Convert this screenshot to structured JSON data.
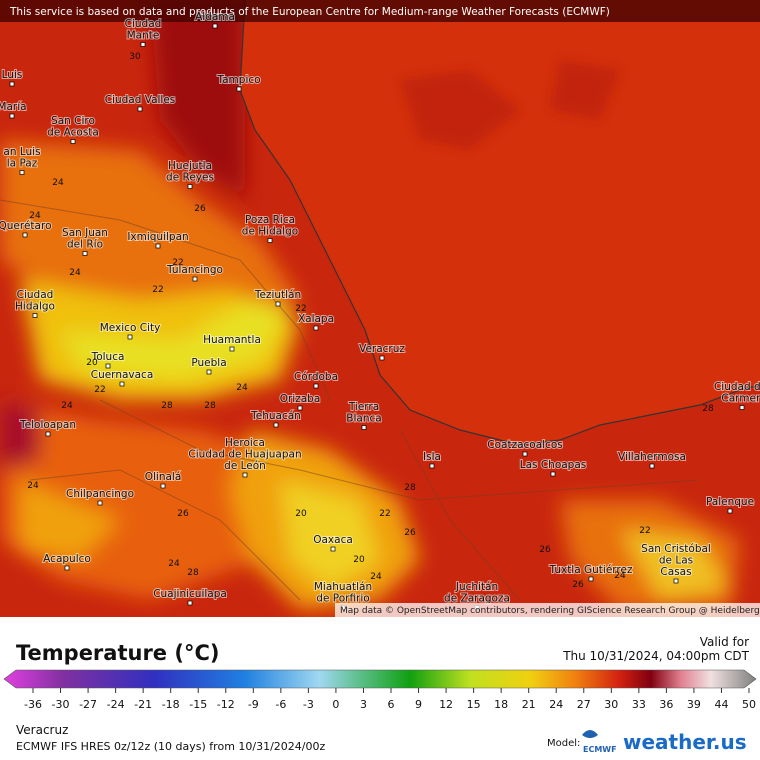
{
  "banner": "This service is based on data and products of the European Centre for Medium-range Weather Forecasts (ECMWF)",
  "map": {
    "cities": [
      [
        "Aldama"
      ],
      [
        "Ciudad",
        "Mante"
      ],
      [
        "Tampico"
      ],
      [
        "Ciudad Valles"
      ],
      [
        "San Ciro",
        "de Acosta"
      ],
      [
        "Luis"
      ],
      [
        "María"
      ],
      [
        "an Luis",
        "la Paz"
      ],
      [
        "Huejutla",
        "de Reyes"
      ],
      [
        "Poza Rica",
        "de Hidalgo"
      ],
      [
        "Querétaro"
      ],
      [
        "San Juan",
        "del Río"
      ],
      [
        "Ixmiquilpan"
      ],
      [
        "Tulancingo"
      ],
      [
        "Ciudad",
        "Hidalgo"
      ],
      [
        "Teziutlán"
      ],
      [
        "Mexico City"
      ],
      [
        "Xalapa"
      ],
      [
        "Huamantla"
      ],
      [
        "Toluca"
      ],
      [
        "Puebla"
      ],
      [
        "Veracruz"
      ],
      [
        "Cuernavaca"
      ],
      [
        "Córdoba"
      ],
      [
        "Orizaba"
      ],
      [
        "Tierra",
        "Blanca"
      ],
      [
        "Tehuacán"
      ],
      [
        "Teloloapan"
      ],
      [
        "Heroica",
        "Ciudad de Huajuapan",
        "de León"
      ],
      [
        "Coatzacoalcos"
      ],
      [
        "Isla"
      ],
      [
        "Las Choapas"
      ],
      [
        "Villahermosa"
      ],
      [
        "Ciudad del",
        "Carmen"
      ],
      [
        "Olinalá"
      ],
      [
        "Palenque"
      ],
      [
        "Chilpancingo"
      ],
      [
        "Oaxaca"
      ],
      [
        "San Cristóbal",
        "de Las",
        "Casas"
      ],
      [
        "Acapulco"
      ],
      [
        "Tuxtla Gutiérrez"
      ],
      [
        "Cuajinicuilapa"
      ],
      [
        "Miahuatlán",
        "de Porfirio"
      ],
      [
        "Juchitán",
        "de Zaragoza"
      ]
    ],
    "contour_labels": [
      30,
      24,
      24,
      24,
      22,
      22,
      20,
      22,
      24,
      22,
      26,
      28,
      28,
      24,
      24,
      26,
      20,
      22,
      28,
      26,
      20,
      24,
      26,
      26,
      24,
      22,
      24,
      28,
      28
    ],
    "attribution": "Map data © OpenStreetMap contributors, rendering GIScience Research Group @ Heidelberg University"
  },
  "legend": {
    "title": "Temperature (°C)",
    "ticks": [
      -36,
      -30,
      -27,
      -24,
      -21,
      -18,
      -15,
      -12,
      -9,
      -6,
      -3,
      0,
      3,
      6,
      9,
      12,
      15,
      18,
      21,
      24,
      27,
      30,
      33,
      36,
      39,
      44,
      50
    ],
    "valid_label": "Valid for",
    "valid_time": "Thu 10/31/2024, 04:00pm CDT"
  },
  "footer": {
    "location": "Veracruz",
    "model_run": "ECMWF IFS HRES 0z/12z (10 days) from 10/31/2024/00z",
    "model_label": "Model:",
    "model_logo": "ECMWF",
    "brand": "weather.us"
  }
}
